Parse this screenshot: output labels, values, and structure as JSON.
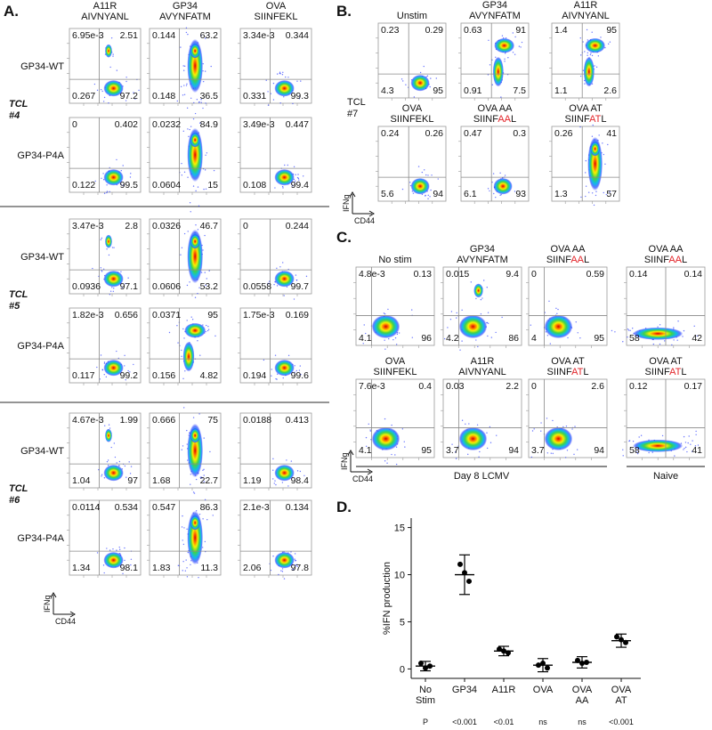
{
  "panel_a": {
    "label": "A.",
    "columns": [
      [
        "A11R",
        "AIVNYANL"
      ],
      [
        "GP34",
        "AVYNFATM"
      ],
      [
        "OVA",
        "SIINFEKL"
      ]
    ],
    "groups": [
      {
        "tcl": [
          "TCL",
          "#4"
        ],
        "rows": [
          {
            "label": "GP34-WT",
            "plots": [
              [
                "6.95e-3",
                "2.51",
                "0.267",
                "97.2"
              ],
              [
                "0.144",
                "63.2",
                "0.148",
                "36.5"
              ],
              [
                "3.34e-3",
                "0.344",
                "0.331",
                "99.3"
              ]
            ]
          },
          {
            "label": "GP34-P4A",
            "plots": [
              [
                "0",
                "0.402",
                "0.122",
                "99.5"
              ],
              [
                "0.0232",
                "84.9",
                "0.0604",
                "15"
              ],
              [
                "3.49e-3",
                "0.447",
                "0.108",
                "99.4"
              ]
            ]
          }
        ]
      },
      {
        "tcl": [
          "TCL",
          "#5"
        ],
        "rows": [
          {
            "label": "GP34-WT",
            "plots": [
              [
                "3.47e-3",
                "2.8",
                "0.0936",
                "97.1"
              ],
              [
                "0.0326",
                "46.7",
                "0.0606",
                "53.2"
              ],
              [
                "0",
                "0.244",
                "0.0558",
                "99.7"
              ]
            ]
          },
          {
            "label": "GP34-P4A",
            "plots": [
              [
                "1.82e-3",
                "0.656",
                "0.117",
                "99.2"
              ],
              [
                "0.0371",
                "95",
                "0.156",
                "4.82"
              ],
              [
                "1.75e-3",
                "0.169",
                "0.194",
                "99.6"
              ]
            ]
          }
        ]
      },
      {
        "tcl": [
          "TCL",
          "#6"
        ],
        "rows": [
          {
            "label": "GP34-WT",
            "plots": [
              [
                "4.67e-3",
                "1.99",
                "1.04",
                "97"
              ],
              [
                "0.666",
                "75",
                "1.68",
                "22.7"
              ],
              [
                "0.0188",
                "0.413",
                "1.19",
                "98.4"
              ]
            ]
          },
          {
            "label": "GP34-P4A",
            "plots": [
              [
                "0.0114",
                "0.534",
                "1.34",
                "98.1"
              ],
              [
                "0.547",
                "86.3",
                "1.83",
                "11.3"
              ],
              [
                "2.1e-3",
                "0.134",
                "2.06",
                "97.8"
              ]
            ]
          }
        ]
      }
    ],
    "y_axis": "IFNg",
    "x_axis": "CD44"
  },
  "highlight_color": "#e3262b",
  "panel_b": {
    "label": "B.",
    "tcl": [
      "TCL",
      "#7"
    ],
    "rows": [
      [
        {
          "title": [
            [
              "Unstim"
            ]
          ],
          "q": [
            "0.23",
            "0.29",
            "4.3",
            "95"
          ]
        },
        {
          "title": [
            [
              "GP34"
            ],
            [
              "AVYNFATM"
            ]
          ],
          "q": [
            "0.63",
            "91",
            "0.91",
            "7.5"
          ]
        },
        {
          "title": [
            [
              "A11R"
            ],
            [
              "AIVNYANL"
            ]
          ],
          "q": [
            "1.4",
            "95",
            "1.1",
            "2.6"
          ]
        }
      ],
      [
        {
          "title": [
            [
              "OVA"
            ],
            [
              "SIINFEKL"
            ]
          ],
          "q": [
            "0.24",
            "0.26",
            "5.6",
            "94"
          ]
        },
        {
          "title": [
            [
              "OVA AA"
            ],
            [
              "SIINF",
              "AA",
              "L"
            ]
          ],
          "q": [
            "0.47",
            "0.3",
            "6.1",
            "93"
          ]
        },
        {
          "title": [
            [
              "OVA AT"
            ],
            [
              "SIINF",
              "AT",
              "L"
            ]
          ],
          "q": [
            "0.26",
            "41",
            "1.3",
            "57"
          ]
        }
      ]
    ],
    "y_axis": "IFNg",
    "x_axis": "CD44"
  },
  "panel_c": {
    "label": "C.",
    "rows": [
      [
        {
          "title": [
            [
              "No stim"
            ]
          ],
          "q": [
            "4.8e-3",
            "0.13",
            "4.1",
            "96"
          ]
        },
        {
          "title": [
            [
              "GP34"
            ],
            [
              "AVYNFATM"
            ]
          ],
          "q": [
            "0.015",
            "9.4",
            "4.2",
            "86"
          ]
        },
        {
          "title": [
            [
              "OVA AA"
            ],
            [
              "SIINF",
              "AA",
              "L"
            ]
          ],
          "q": [
            "0",
            "0.59",
            "4",
            "95"
          ]
        },
        {
          "title": [
            [
              "OVA AA"
            ],
            [
              "SIINF",
              "AA",
              "L"
            ]
          ],
          "q": [
            "0.14",
            "0.14",
            "58",
            "42"
          ]
        }
      ],
      [
        {
          "title": [
            [
              "OVA"
            ],
            [
              "SIINFEKL"
            ]
          ],
          "q": [
            "7.6e-3",
            "0.4",
            "4.1",
            "95"
          ]
        },
        {
          "title": [
            [
              "A11R"
            ],
            [
              "AIVNYANL"
            ]
          ],
          "q": [
            "0.03",
            "2.2",
            "3.7",
            "94"
          ]
        },
        {
          "title": [
            [
              "OVA AT"
            ],
            [
              "SIINF",
              "AT",
              "L"
            ]
          ],
          "q": [
            "0",
            "2.6",
            "3.7",
            "94"
          ]
        },
        {
          "title": [
            [
              "OVA AT"
            ],
            [
              "SIINF",
              "AT",
              "L"
            ]
          ],
          "q": [
            "0.12",
            "0.17",
            "58",
            "41"
          ]
        }
      ]
    ],
    "groups": [
      "Day 8 LCMV",
      "Naive"
    ],
    "y_axis": "IFNg",
    "x_axis": "CD44"
  },
  "panel_d_label": "D.",
  "chart_data": {
    "type": "dot",
    "categories": [
      [
        "No",
        "Stim"
      ],
      [
        "GP34"
      ],
      [
        "A11R"
      ],
      [
        "OVA"
      ],
      [
        "OVA",
        "AA"
      ],
      [
        "OVA",
        "AT"
      ]
    ],
    "points": [
      [
        0.6,
        0.1,
        0.3
      ],
      [
        11.1,
        10.2,
        9.3
      ],
      [
        2.1,
        1.9,
        1.7
      ],
      [
        0.4,
        0.6,
        0.1
      ],
      [
        0.9,
        0.6,
        0.7
      ],
      [
        3.4,
        3.1,
        2.8
      ]
    ],
    "means": [
      0.3,
      10,
      1.9,
      0.4,
      0.7,
      3
    ],
    "sd": [
      0.5,
      2.1,
      0.5,
      0.7,
      0.6,
      0.7
    ],
    "ylabel": "%IFN production",
    "ylim": [
      -1,
      16
    ],
    "yticks": [
      0,
      5,
      10,
      15
    ],
    "p_label": "P",
    "p_values": [
      "<0.001",
      "<0.01",
      "ns",
      "ns",
      "<0.001"
    ],
    "color": "#000000"
  }
}
